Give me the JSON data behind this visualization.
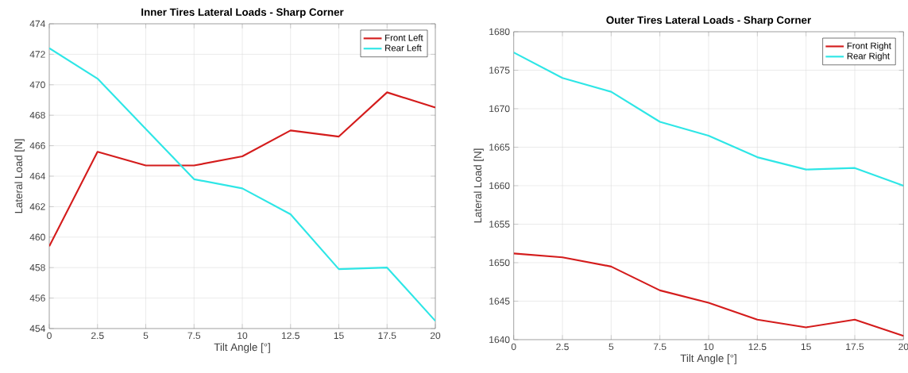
{
  "chart_data": [
    {
      "type": "line",
      "title": "Inner Tires Lateral Loads - Sharp Corner",
      "xlabel": "Tilt Angle [°]",
      "ylabel": "Lateral Load [N]",
      "x": [
        0,
        2.5,
        5,
        7.5,
        10,
        12.5,
        15,
        17.5,
        20
      ],
      "xlim": [
        0,
        20
      ],
      "xticks": [
        0,
        2.5,
        5,
        7.5,
        10,
        12.5,
        15,
        17.5,
        20
      ],
      "ylim": [
        454,
        474
      ],
      "yticks": [
        454,
        456,
        458,
        460,
        462,
        464,
        466,
        468,
        470,
        472,
        474
      ],
      "grid": true,
      "legend": "top right",
      "series": [
        {
          "name": "Front Left",
          "color": "#d41c1c",
          "values": [
            459.4,
            465.6,
            464.7,
            464.7,
            465.3,
            467.0,
            466.6,
            469.5,
            468.5
          ]
        },
        {
          "name": "Rear Left",
          "color": "#2ee6e6",
          "values": [
            472.4,
            470.4,
            467.1,
            463.8,
            463.2,
            461.5,
            457.9,
            458.0,
            454.5
          ]
        }
      ]
    },
    {
      "type": "line",
      "title": "Outer Tires Lateral Loads - Sharp Corner",
      "xlabel": "Tilt Angle [°]",
      "ylabel": "Lateral Load [N]",
      "x": [
        0,
        2.5,
        5,
        7.5,
        10,
        12.5,
        15,
        17.5,
        20
      ],
      "xlim": [
        0,
        20
      ],
      "xticks": [
        0,
        2.5,
        5,
        7.5,
        10,
        12.5,
        15,
        17.5,
        20
      ],
      "ylim": [
        1640,
        1680
      ],
      "yticks": [
        1640,
        1645,
        1650,
        1655,
        1660,
        1665,
        1670,
        1675,
        1680
      ],
      "grid": true,
      "legend": "top right",
      "series": [
        {
          "name": "Front Right",
          "color": "#d41c1c",
          "values": [
            1651.2,
            1650.7,
            1649.5,
            1646.4,
            1644.8,
            1642.6,
            1641.6,
            1642.6,
            1640.5
          ]
        },
        {
          "name": "Rear Right",
          "color": "#2ee6e6",
          "values": [
            1677.3,
            1674.0,
            1672.2,
            1668.3,
            1666.5,
            1663.7,
            1662.1,
            1662.3,
            1660.0
          ]
        }
      ]
    }
  ]
}
